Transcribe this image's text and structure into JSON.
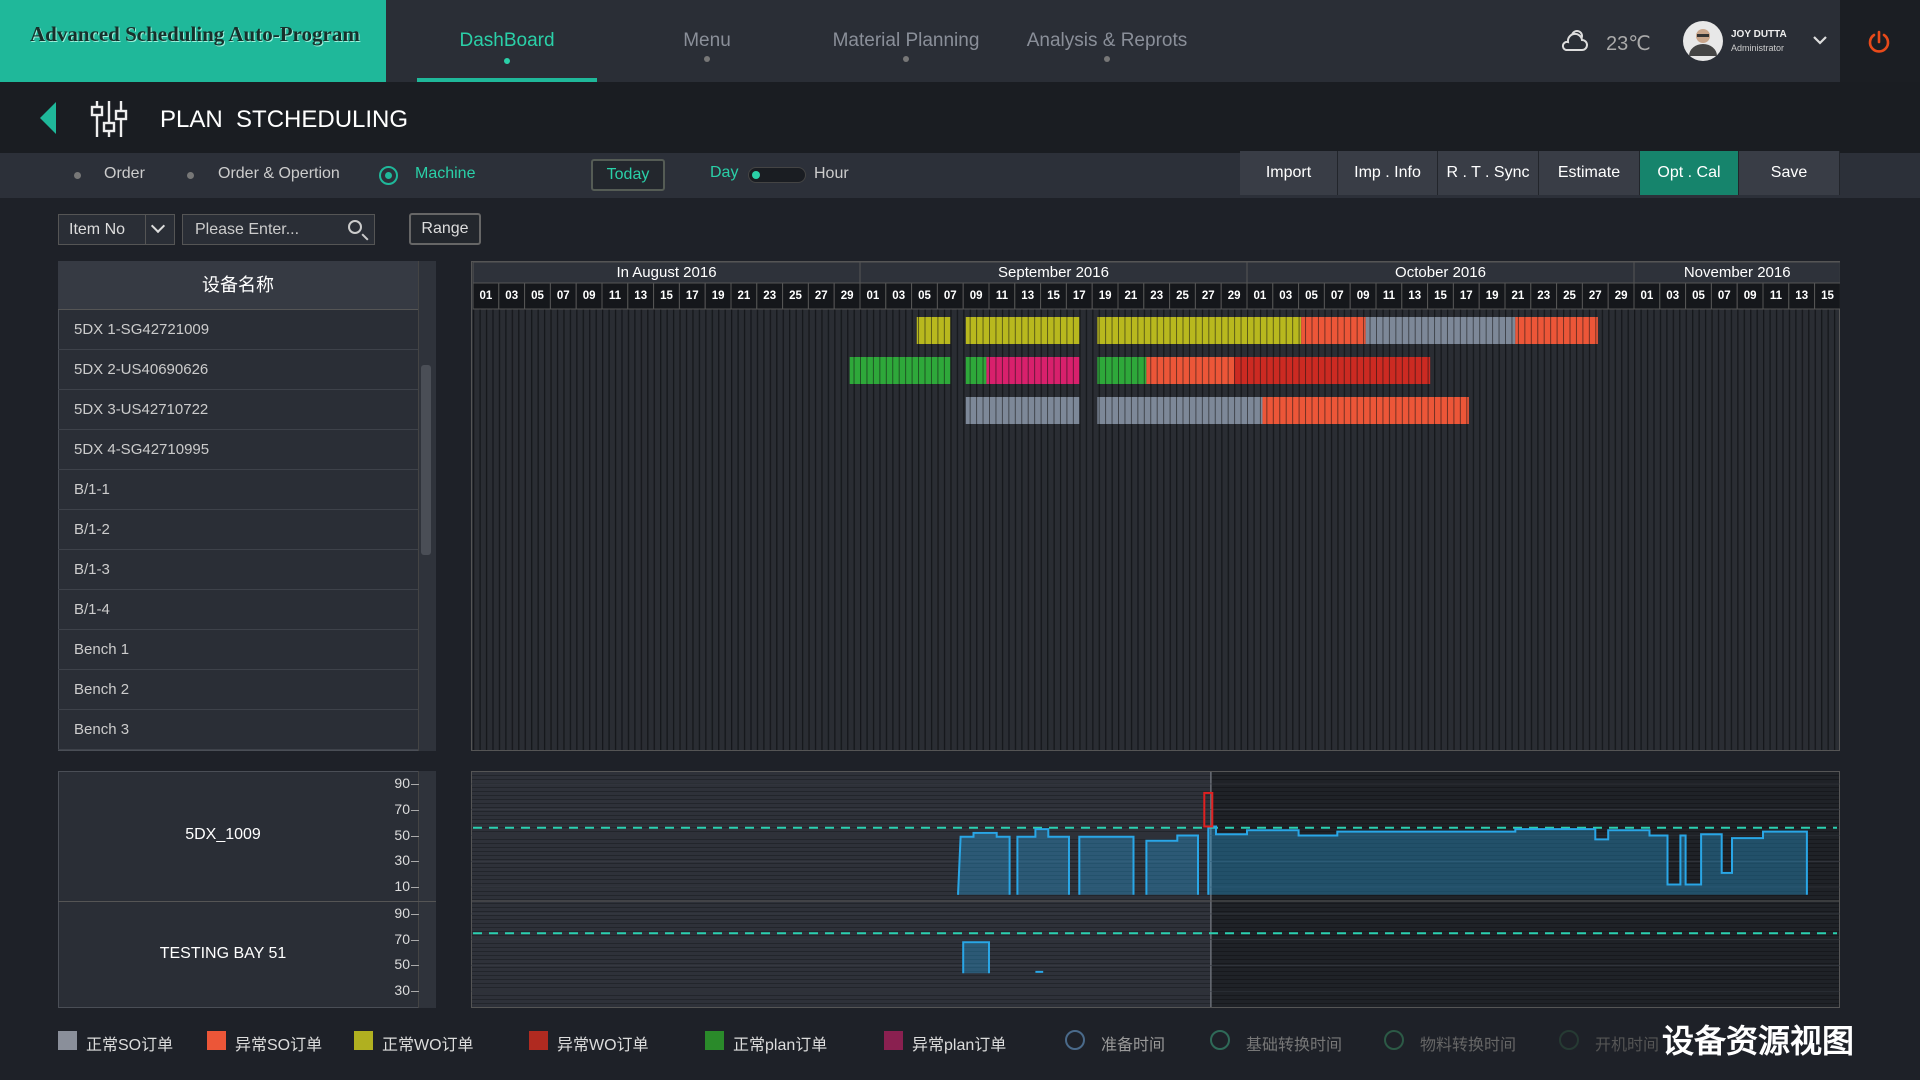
{
  "header": {
    "logo": "Advanced Scheduling Auto-Program",
    "nav": [
      "DashBoard",
      "Menu",
      "Material Planning",
      "Analysis & Reprots"
    ],
    "temperature": "23℃",
    "user_name": "JOY DUTTA",
    "user_role": "Administrator"
  },
  "page_title": "PLAN  STCHEDULING",
  "toolbar": {
    "views": [
      "Order",
      "Order & Opertion",
      "Machine"
    ],
    "today": "Today",
    "scale": [
      "Day",
      "Hour"
    ],
    "actions": [
      "Import",
      "Imp . Info",
      "R . T . Sync",
      "Estimate",
      "Opt . Cal",
      "Save"
    ]
  },
  "filter": {
    "field": "Item No",
    "placeholder": "Please Enter...",
    "range": "Range"
  },
  "machine_list": {
    "header": "设备名称",
    "items": [
      "5DX 1-SG42721009",
      "5DX 2-US40690626",
      "5DX 3-US42710722",
      "5DX 4-SG42710995",
      "B/1-1",
      "B/1-2",
      "B/1-3",
      "B/1-4",
      "Bench 1",
      "Bench 2",
      "Bench 3"
    ]
  },
  "gantt": {
    "today": 28.6,
    "months": [
      {
        "label": "In August 2016",
        "days": [
          "01",
          "03",
          "05",
          "07",
          "09",
          "11",
          "13",
          "15",
          "17",
          "19",
          "21",
          "23",
          "25",
          "27",
          "29"
        ]
      },
      {
        "label": "September 2016",
        "days": [
          "01",
          "03",
          "05",
          "07",
          "09",
          "11",
          "13",
          "15",
          "17",
          "19",
          "21",
          "23",
          "25",
          "27",
          "29"
        ]
      },
      {
        "label": "October 2016",
        "days": [
          "01",
          "03",
          "05",
          "07",
          "09",
          "11",
          "13",
          "15",
          "17",
          "19",
          "21",
          "23",
          "25",
          "27",
          "29"
        ]
      },
      {
        "label": "November 2016",
        "days": [
          "01",
          "03",
          "05",
          "07",
          "09",
          "11",
          "13",
          "15"
        ]
      }
    ],
    "rows": [
      {
        "segments": [
          {
            "from": 17.2,
            "to": 18.5,
            "color": "#b8b81e"
          },
          {
            "from": 19.1,
            "to": 23.5,
            "color": "#b8b81e"
          },
          {
            "from": 24.2,
            "to": 32.1,
            "color": "#b8b81e"
          },
          {
            "from": 32.1,
            "to": 34.6,
            "color": "#ec5638"
          },
          {
            "from": 34.6,
            "to": 40.4,
            "color": "#7d8898"
          },
          {
            "from": 40.4,
            "to": 43.6,
            "color": "#ec5638"
          }
        ]
      },
      {
        "segments": [
          {
            "from": 14.6,
            "to": 18.5,
            "color": "#2ea83a"
          },
          {
            "from": 19.1,
            "to": 19.9,
            "color": "#2ea83a"
          },
          {
            "from": 19.9,
            "to": 23.5,
            "color": "#d8206c"
          },
          {
            "from": 24.2,
            "to": 26.1,
            "color": "#2ea83a"
          },
          {
            "from": 26.1,
            "to": 29.5,
            "color": "#ec5638"
          },
          {
            "from": 29.5,
            "to": 37.1,
            "color": "#cc2a22"
          }
        ]
      },
      {
        "segments": [
          {
            "from": 19.1,
            "to": 23.5,
            "color": "#7d8898"
          },
          {
            "from": 24.2,
            "to": 30.6,
            "color": "#7d8898"
          },
          {
            "from": 30.6,
            "to": 38.6,
            "color": "#ec5638"
          }
        ]
      }
    ]
  },
  "load_charts": [
    {
      "type": "line",
      "name": "5DX_1009",
      "ylim": [
        0,
        100
      ],
      "yticks": [
        90,
        70,
        50,
        30,
        10
      ],
      "threshold": 56,
      "peak": {
        "x": 28.5,
        "low": 57,
        "high": 83,
        "color": "#e02020"
      },
      "series": [
        {
          "color": "#29a6e6",
          "x": [
            18.8,
            18.9,
            19.4,
            19.4,
            20.3,
            20.3,
            20.8,
            20.8,
            null,
            21.1,
            21.1,
            21.8,
            21.8,
            22.3,
            22.3,
            23.1,
            23.1,
            null,
            23.5,
            23.5,
            25.6,
            25.6,
            null,
            26.1,
            26.1,
            27.3,
            27.3,
            28.1,
            28.1,
            null,
            28.5,
            28.5,
            28.8,
            28.8,
            30,
            30,
            32,
            32,
            33.5,
            33.5,
            40.4,
            40.4,
            43.5,
            43.5,
            44,
            44,
            45.6,
            45.6,
            46.3,
            46.3,
            46.8,
            46.8,
            47,
            47,
            47.6,
            47.6,
            48.4,
            48.4,
            48.8,
            48.8,
            50,
            50,
            51.7,
            51.7
          ],
          "values": [
            4,
            49,
            49,
            52,
            52,
            49,
            49,
            4,
            null,
            4,
            49,
            49,
            55,
            55,
            49,
            49,
            4,
            null,
            4,
            49,
            49,
            4,
            null,
            4,
            46,
            46,
            50,
            50,
            4,
            null,
            4,
            57,
            57,
            51,
            51,
            54,
            54,
            50,
            50,
            53,
            53,
            55,
            55,
            47,
            47,
            54,
            54,
            50,
            50,
            12,
            12,
            50,
            50,
            12,
            12,
            51,
            51,
            21,
            21,
            48,
            48,
            53,
            53,
            4
          ]
        }
      ]
    },
    {
      "type": "line",
      "name": "TESTING BAY 51",
      "ylim": [
        17,
        100
      ],
      "yticks": [
        90,
        70,
        50,
        30
      ],
      "threshold": 75,
      "series": [
        {
          "color": "#29a6e6",
          "x": [
            19,
            19,
            20,
            20,
            null,
            21.8,
            22.1
          ],
          "values": [
            44,
            68,
            68,
            44,
            null,
            45,
            45
          ]
        }
      ]
    }
  ],
  "legend": [
    {
      "label": "正常SO订单",
      "color": "#8a8f9a"
    },
    {
      "label": "异常SO订单",
      "color": "#ec5638"
    },
    {
      "label": "正常WO订单",
      "color": "#b0b020"
    },
    {
      "label": "异常WO订单",
      "color": "#b02a20"
    },
    {
      "label": "正常plan订单",
      "color": "#2a8a2a"
    },
    {
      "label": "异常plan订单",
      "color": "#8a2050"
    }
  ],
  "legend_icons": [
    "准备时间",
    "基础转换时间",
    "物料转换时间",
    "开机时间"
  ],
  "caption": "设备资源视图"
}
